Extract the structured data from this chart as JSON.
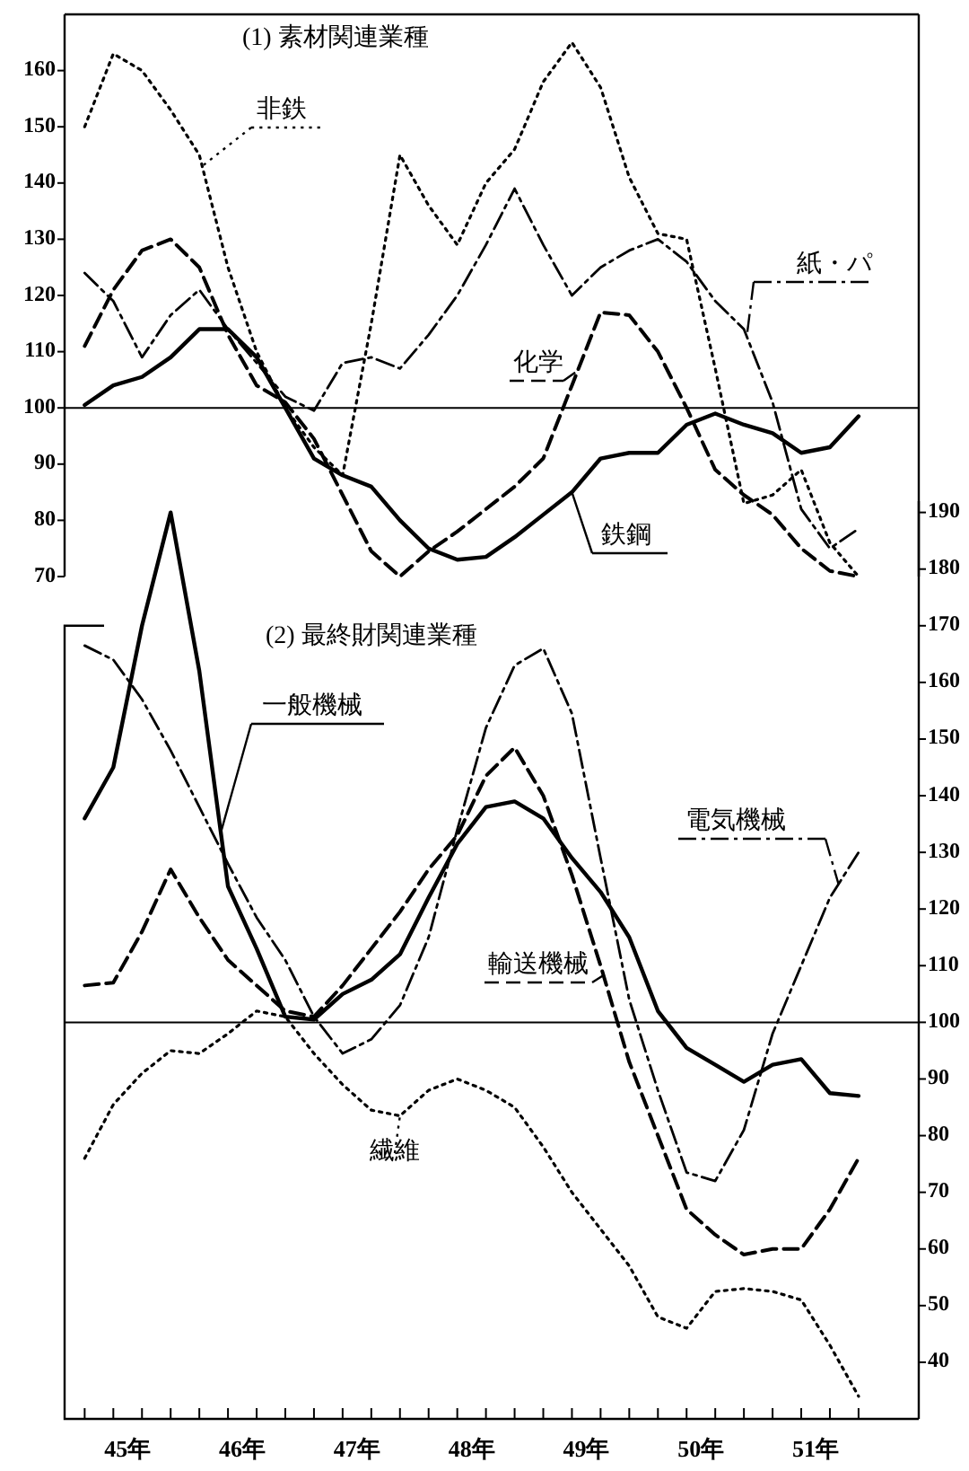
{
  "chart_data": [
    {
      "type": "line",
      "title": "(1) 素材関連業種",
      "x": [
        45.125,
        45.375,
        45.625,
        45.875,
        46.125,
        46.375,
        46.625,
        46.875,
        47.125,
        47.375,
        47.625,
        47.875,
        48.125,
        48.375,
        48.625,
        48.875,
        49.125,
        49.375,
        49.625,
        49.875,
        50.125,
        50.375,
        50.625,
        50.875,
        51.125,
        51.375,
        51.625,
        51.875
      ],
      "xlim": [
        44.95,
        52.4
      ],
      "ylim": [
        70,
        170
      ],
      "yticks": [
        70,
        80,
        90,
        100,
        110,
        120,
        130,
        140,
        150,
        160
      ],
      "tick_labels": "y",
      "ref_lines": [
        {
          "axis": "y",
          "value": 100
        }
      ],
      "series": [
        {
          "name": "非鉄",
          "color": "#000000",
          "line_style": "dotted",
          "values": [
            150,
            163,
            160,
            153,
            145,
            125,
            110,
            100,
            93,
            88,
            115,
            145,
            136,
            129,
            140,
            146,
            158,
            165,
            157,
            141,
            131,
            130,
            107,
            83,
            84.5,
            89,
            76,
            70
          ]
        },
        {
          "name": "紙・パ",
          "color": "#000000",
          "line_style": "dashdot",
          "values": [
            124,
            119,
            109,
            116.5,
            121,
            114,
            108,
            102,
            99.5,
            108,
            109,
            107,
            113,
            120,
            129,
            139,
            129,
            120,
            125,
            128,
            130,
            126,
            119,
            114,
            101,
            82,
            75,
            78.5
          ]
        },
        {
          "name": "化学",
          "color": "#000000",
          "line_style": "dashed",
          "values": [
            111,
            121,
            128,
            130,
            125,
            113,
            104,
            101,
            94.5,
            84.5,
            74.5,
            70,
            74.5,
            78,
            82,
            86,
            91,
            104,
            117,
            116.5,
            110,
            100,
            89,
            84.5,
            81,
            75,
            71,
            70
          ]
        },
        {
          "name": "鉄鋼",
          "color": "#000000",
          "line_style": "solid",
          "values": [
            100.5,
            104,
            105.5,
            109,
            114,
            114,
            109,
            100,
            91,
            88,
            86,
            80,
            75,
            73,
            73.5,
            77,
            81,
            85,
            91,
            92,
            92,
            97,
            99,
            97,
            95.5,
            92,
            93,
            98.5
          ]
        }
      ]
    },
    {
      "type": "line",
      "title": "(2) 最終財関連業種",
      "x": [
        45.125,
        45.375,
        45.625,
        45.875,
        46.125,
        46.375,
        46.625,
        46.875,
        47.125,
        47.375,
        47.625,
        47.875,
        48.125,
        48.375,
        48.625,
        48.875,
        49.125,
        49.375,
        49.625,
        49.875,
        50.125,
        50.375,
        50.625,
        50.875,
        51.125,
        51.375,
        51.625,
        51.875
      ],
      "xlim": [
        44.95,
        52.4
      ],
      "xticks": [
        {
          "value": 45.125,
          "label": null
        },
        {
          "value": 45.375,
          "label": null
        },
        {
          "value": 45.625,
          "label": null
        },
        {
          "value": 45.875,
          "label": null
        },
        {
          "value": 46.125,
          "label": null
        },
        {
          "value": 46.375,
          "label": null
        },
        {
          "value": 46.625,
          "label": null
        },
        {
          "value": 46.875,
          "label": null
        },
        {
          "value": 47.125,
          "label": null
        },
        {
          "value": 47.375,
          "label": null
        },
        {
          "value": 47.625,
          "label": null
        },
        {
          "value": 47.875,
          "label": null
        },
        {
          "value": 48.125,
          "label": null
        },
        {
          "value": 48.375,
          "label": null
        },
        {
          "value": 48.625,
          "label": null
        },
        {
          "value": 48.875,
          "label": null
        },
        {
          "value": 49.125,
          "label": null
        },
        {
          "value": 49.375,
          "label": null
        },
        {
          "value": 49.625,
          "label": null
        },
        {
          "value": 49.875,
          "label": null
        },
        {
          "value": 50.125,
          "label": null
        },
        {
          "value": 50.375,
          "label": null
        },
        {
          "value": 50.625,
          "label": null
        },
        {
          "value": 50.875,
          "label": null
        },
        {
          "value": 51.125,
          "label": null
        },
        {
          "value": 51.375,
          "label": null
        },
        {
          "value": 51.625,
          "label": null
        },
        {
          "value": 51.875,
          "label": null
        },
        {
          "value": 45.5,
          "label": "45年"
        },
        {
          "value": 46.5,
          "label": "46年"
        },
        {
          "value": 47.5,
          "label": "47年"
        },
        {
          "value": 48.5,
          "label": "48年"
        },
        {
          "value": 49.5,
          "label": "49年"
        },
        {
          "value": 50.5,
          "label": "50年"
        },
        {
          "value": 51.5,
          "label": "51年"
        }
      ],
      "y2lim": [
        30,
        192
      ],
      "y2ticks": [
        40,
        50,
        60,
        70,
        80,
        90,
        100,
        110,
        120,
        130,
        140,
        150,
        160,
        170,
        180,
        190
      ],
      "ref_lines": [
        {
          "axis": "y2",
          "value": 100
        }
      ],
      "series": [
        {
          "name": "一般機械",
          "color": "#000000",
          "line_style": "solid",
          "axis": "y2",
          "values": [
            136,
            145,
            170,
            190,
            162,
            124,
            113,
            101,
            100.5,
            105,
            107.5,
            112,
            122,
            131.5,
            138,
            139,
            136,
            129,
            123,
            115,
            102,
            95.5,
            92.5,
            89.5,
            92.5,
            93.5,
            87.5,
            87
          ]
        },
        {
          "name": "電気機械",
          "color": "#000000",
          "line_style": "dashdot",
          "axis": "y2",
          "values": [
            166.5,
            164,
            157,
            148,
            138,
            128,
            118.5,
            111,
            101,
            94.5,
            97,
            103,
            115,
            134,
            152,
            163,
            166,
            154.5,
            129,
            104,
            88,
            73.5,
            72,
            81,
            98,
            110,
            122,
            130
          ]
        },
        {
          "name": "輸送機械",
          "color": "#000000",
          "line_style": "dashed",
          "axis": "y2",
          "values": [
            106.5,
            107,
            116,
            127,
            118.5,
            111,
            106.5,
            102,
            101,
            106.5,
            113,
            119.5,
            127,
            133,
            143.5,
            148.5,
            140,
            126,
            110,
            93,
            80,
            67,
            62.5,
            59,
            60,
            60,
            67,
            76
          ]
        },
        {
          "name": "繊維",
          "color": "#000000",
          "line_style": "dotted",
          "axis": "y2",
          "values": [
            76,
            85.5,
            91,
            95,
            94.5,
            98,
            102,
            101,
            94.5,
            89,
            84.5,
            83.5,
            88,
            90,
            88,
            85,
            78,
            70,
            63.5,
            57,
            48,
            46,
            52.5,
            53,
            52.5,
            51,
            43,
            34
          ]
        }
      ]
    }
  ]
}
